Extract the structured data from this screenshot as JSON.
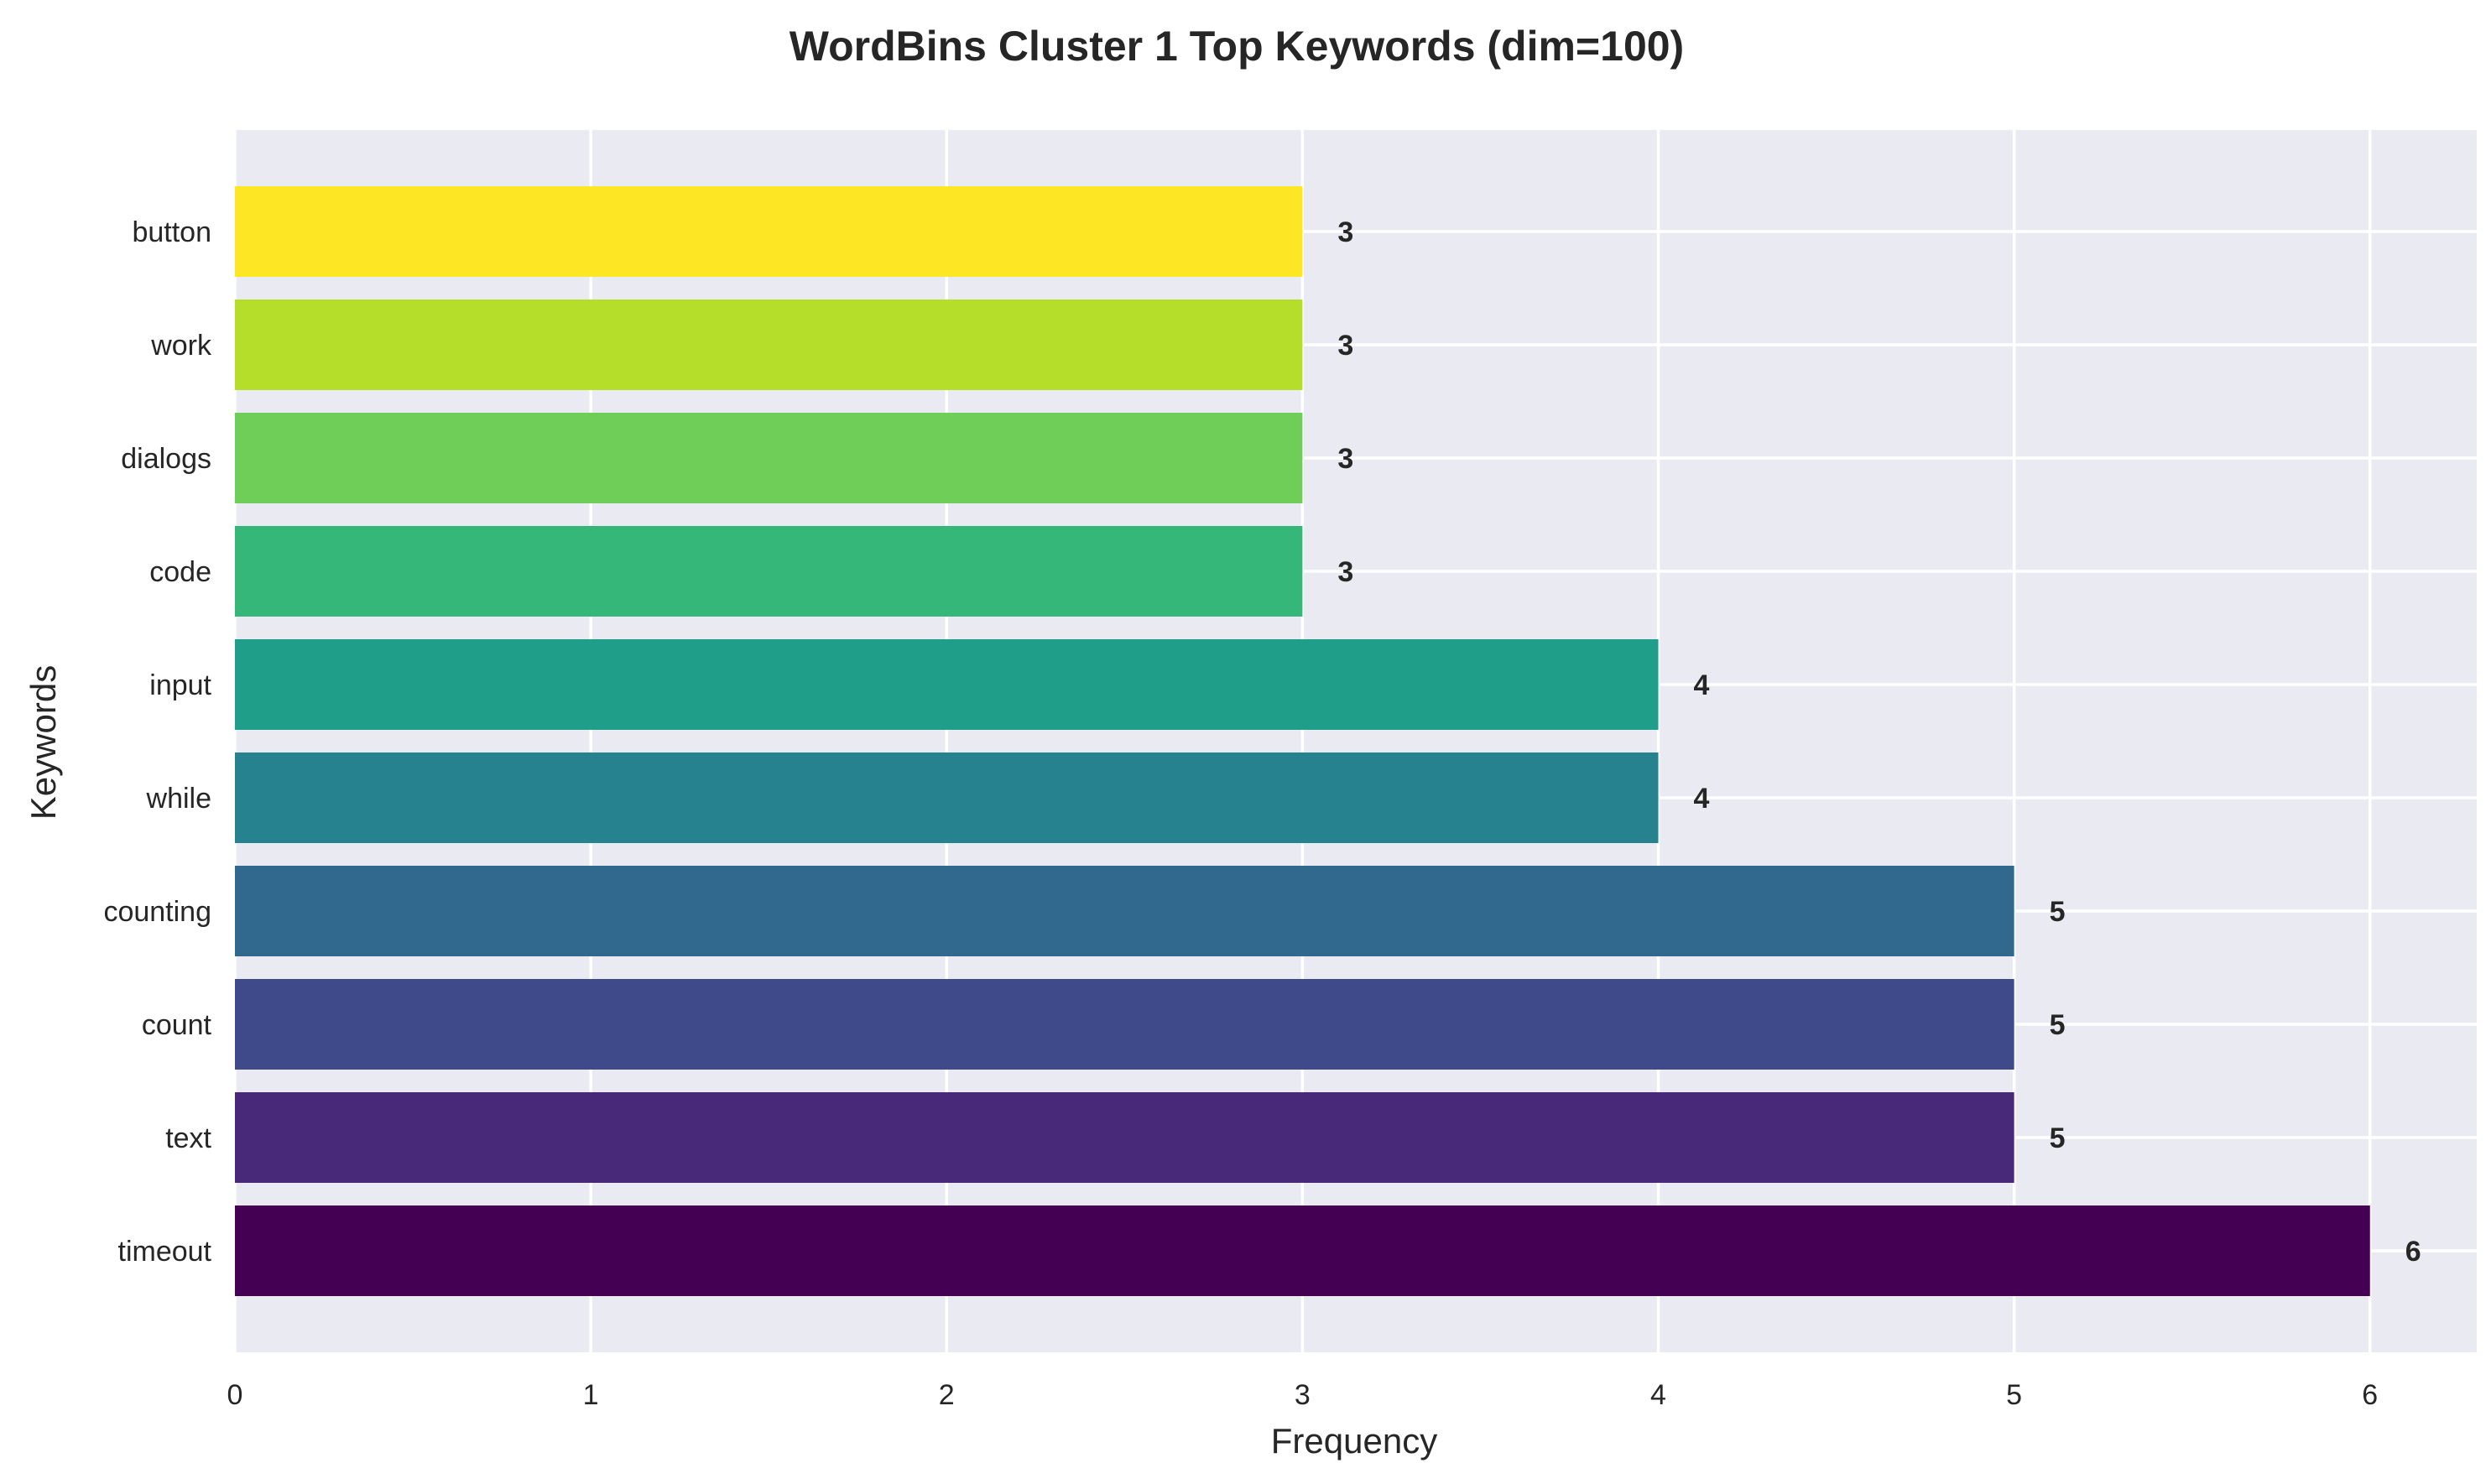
{
  "chart_data": {
    "type": "bar",
    "orientation": "horizontal",
    "title": "WordBins Cluster 1 Top Keywords (dim=100)",
    "xlabel": "Frequency",
    "ylabel": "Keywords",
    "xlim": [
      0,
      6.3
    ],
    "xticks": [
      "0",
      "1",
      "2",
      "3",
      "4",
      "5",
      "6"
    ],
    "grid": true,
    "categories": [
      "timeout",
      "text",
      "count",
      "counting",
      "while",
      "input",
      "code",
      "dialogs",
      "work",
      "button"
    ],
    "values": [
      6,
      5,
      5,
      5,
      4,
      4,
      3,
      3,
      3,
      3
    ],
    "colors": [
      "#440154",
      "#482878",
      "#3e4a89",
      "#31688e",
      "#26828e",
      "#1f9e89",
      "#35b779",
      "#6ece58",
      "#b5de2b",
      "#fde725"
    ],
    "background_color": "#eaeaf2",
    "grid_color": "#ffffff"
  }
}
